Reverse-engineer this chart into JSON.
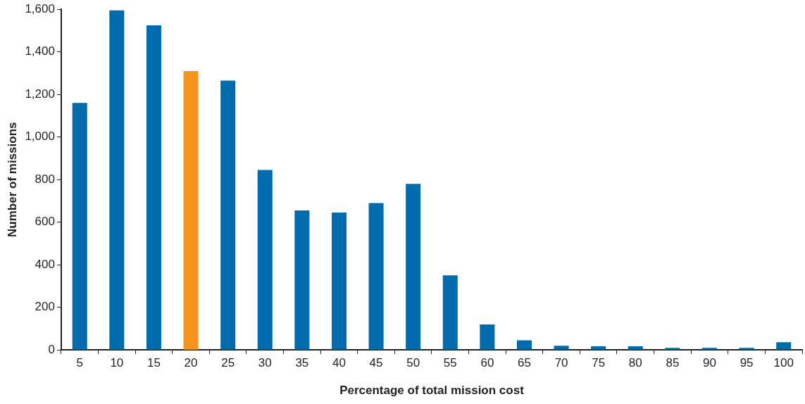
{
  "chart_data": {
    "type": "bar",
    "xlabel": "Percentage of total mission cost",
    "ylabel": "Number of missions",
    "categories": [
      "5",
      "10",
      "15",
      "20",
      "25",
      "30",
      "35",
      "40",
      "45",
      "50",
      "55",
      "60",
      "65",
      "70",
      "75",
      "80",
      "85",
      "90",
      "95",
      "100"
    ],
    "values": [
      1160,
      1595,
      1525,
      1310,
      1265,
      845,
      655,
      645,
      690,
      780,
      350,
      120,
      45,
      20,
      17,
      17,
      10,
      10,
      10,
      36
    ],
    "colors": [
      "#006cad",
      "#006cad",
      "#006cad",
      "#f7941d",
      "#006cad",
      "#006cad",
      "#006cad",
      "#006cad",
      "#006cad",
      "#006cad",
      "#006cad",
      "#006cad",
      "#006cad",
      "#006cad",
      "#006cad",
      "#006cad",
      "#006cad",
      "#006cad",
      "#006cad",
      "#006cad"
    ],
    "ylim": [
      0,
      1600
    ],
    "yticks": [
      0,
      200,
      400,
      600,
      800,
      {
        "value": 1000,
        "label": "1,000"
      },
      {
        "value": 1200,
        "label": "1,200"
      },
      {
        "value": 1400,
        "label": "1,400"
      },
      {
        "value": 1600,
        "label": "1,600"
      }
    ],
    "grid": false,
    "legend": false
  }
}
